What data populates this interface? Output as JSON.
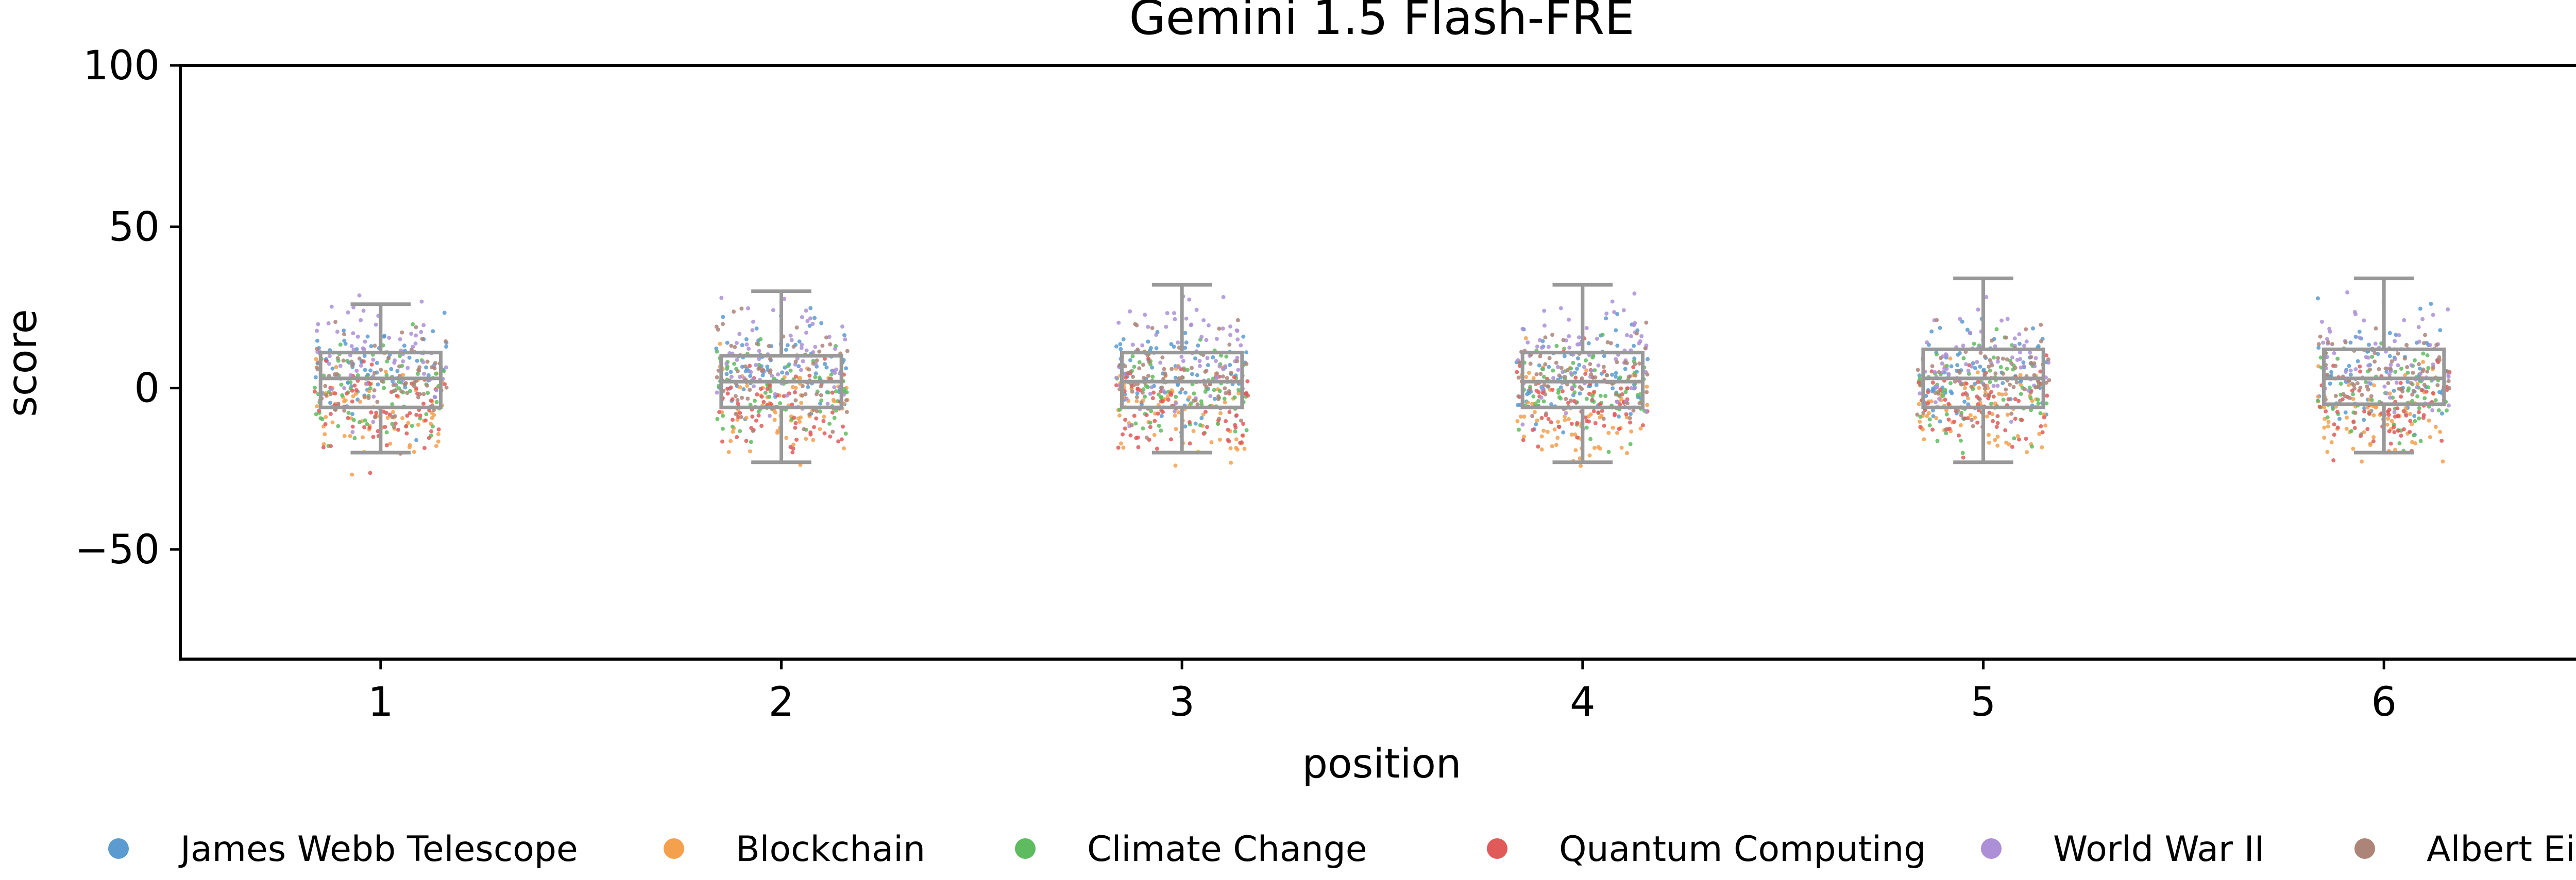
{
  "chart_data": {
    "type": "scatter",
    "title": "Gemini 1.5 Flash-FRE",
    "xlabel": "position",
    "ylabel": "score",
    "xlim": [
      0.5,
      6.5
    ],
    "ylim": [
      -84,
      100
    ],
    "x_ticks": [
      1,
      2,
      3,
      4,
      5,
      6
    ],
    "y_ticks": [
      -50,
      0,
      50,
      100
    ],
    "x_tick_labels": [
      "1",
      "2",
      "3",
      "4",
      "5",
      "6"
    ],
    "y_tick_labels": [
      "−50",
      "0",
      "50",
      "100"
    ],
    "grid": false,
    "legend": {
      "placement": "bottom",
      "entries": [
        "James Webb Telescope",
        "Blockchain",
        "Climate Change",
        "Quantum Computing",
        "World War II",
        "Albert Einstein"
      ]
    },
    "series": [
      {
        "name": "James Webb Telescope",
        "color": "#5b9bd0",
        "mean": 5,
        "spread": 8
      },
      {
        "name": "Blockchain",
        "color": "#f5a04d",
        "mean": -8,
        "spread": 8
      },
      {
        "name": "Climate Change",
        "color": "#5fbb5f",
        "mean": 0,
        "spread": 8
      },
      {
        "name": "Quantum Computing",
        "color": "#e05a5a",
        "mean": -6,
        "spread": 7
      },
      {
        "name": "World War II",
        "color": "#ac8fd6",
        "mean": 10,
        "spread": 9
      },
      {
        "name": "Albert Einstein",
        "color": "#ad8478",
        "mean": 4,
        "spread": 7
      }
    ],
    "boxes": [
      {
        "position": 1,
        "whisker_low": -20,
        "q1": -6,
        "median": 3,
        "q3": 11,
        "whisker_high": 26
      },
      {
        "position": 2,
        "whisker_low": -23,
        "q1": -6,
        "median": 2,
        "q3": 10,
        "whisker_high": 30
      },
      {
        "position": 3,
        "whisker_low": -20,
        "q1": -6,
        "median": 2,
        "q3": 11,
        "whisker_high": 32
      },
      {
        "position": 4,
        "whisker_low": -23,
        "q1": -6,
        "median": 2,
        "q3": 11,
        "whisker_high": 32
      },
      {
        "position": 5,
        "whisker_low": -23,
        "q1": -6,
        "median": 3,
        "q3": 12,
        "whisker_high": 34
      },
      {
        "position": 6,
        "whisker_low": -20,
        "q1": -5,
        "median": 3,
        "q3": 12,
        "whisker_high": 34
      }
    ],
    "box_color": "#999999"
  }
}
